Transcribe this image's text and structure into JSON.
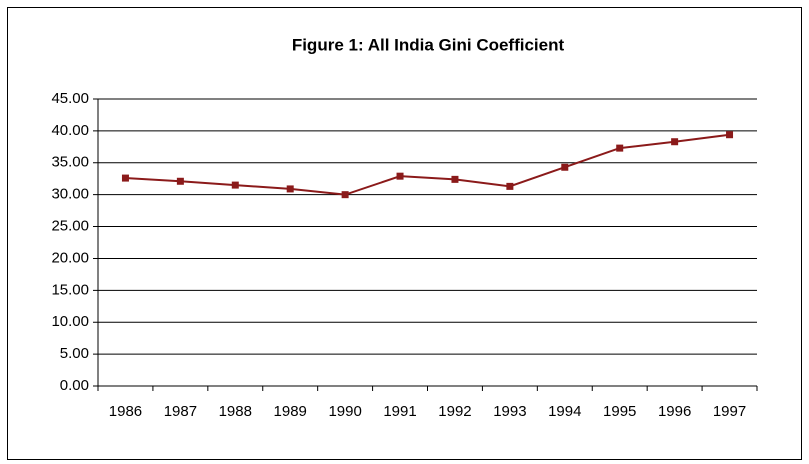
{
  "chart_data": {
    "type": "line",
    "title": "Figure 1: All India Gini Coefficient",
    "categories": [
      "1986",
      "1987",
      "1988",
      "1989",
      "1990",
      "1991",
      "1992",
      "1993",
      "1994",
      "1995",
      "1996",
      "1997"
    ],
    "series": [
      {
        "color": "#8b1a1a",
        "values": [
          32.6,
          32.1,
          31.5,
          30.9,
          30.0,
          32.9,
          32.4,
          31.3,
          34.3,
          37.3,
          38.3,
          39.4
        ]
      }
    ],
    "ylim": [
      0,
      45
    ],
    "yticks": [
      {
        "value": 0,
        "label": "0.00"
      },
      {
        "value": 5,
        "label": "5.00"
      },
      {
        "value": 10,
        "label": "10.00"
      },
      {
        "value": 15,
        "label": "15.00"
      },
      {
        "value": 20,
        "label": "20.00"
      },
      {
        "value": 25,
        "label": "25.00"
      },
      {
        "value": 30,
        "label": "30.00"
      },
      {
        "value": 35,
        "label": "35.00"
      },
      {
        "value": 40,
        "label": "40.00"
      },
      {
        "value": 45,
        "label": "45.00"
      }
    ],
    "grid": true
  }
}
